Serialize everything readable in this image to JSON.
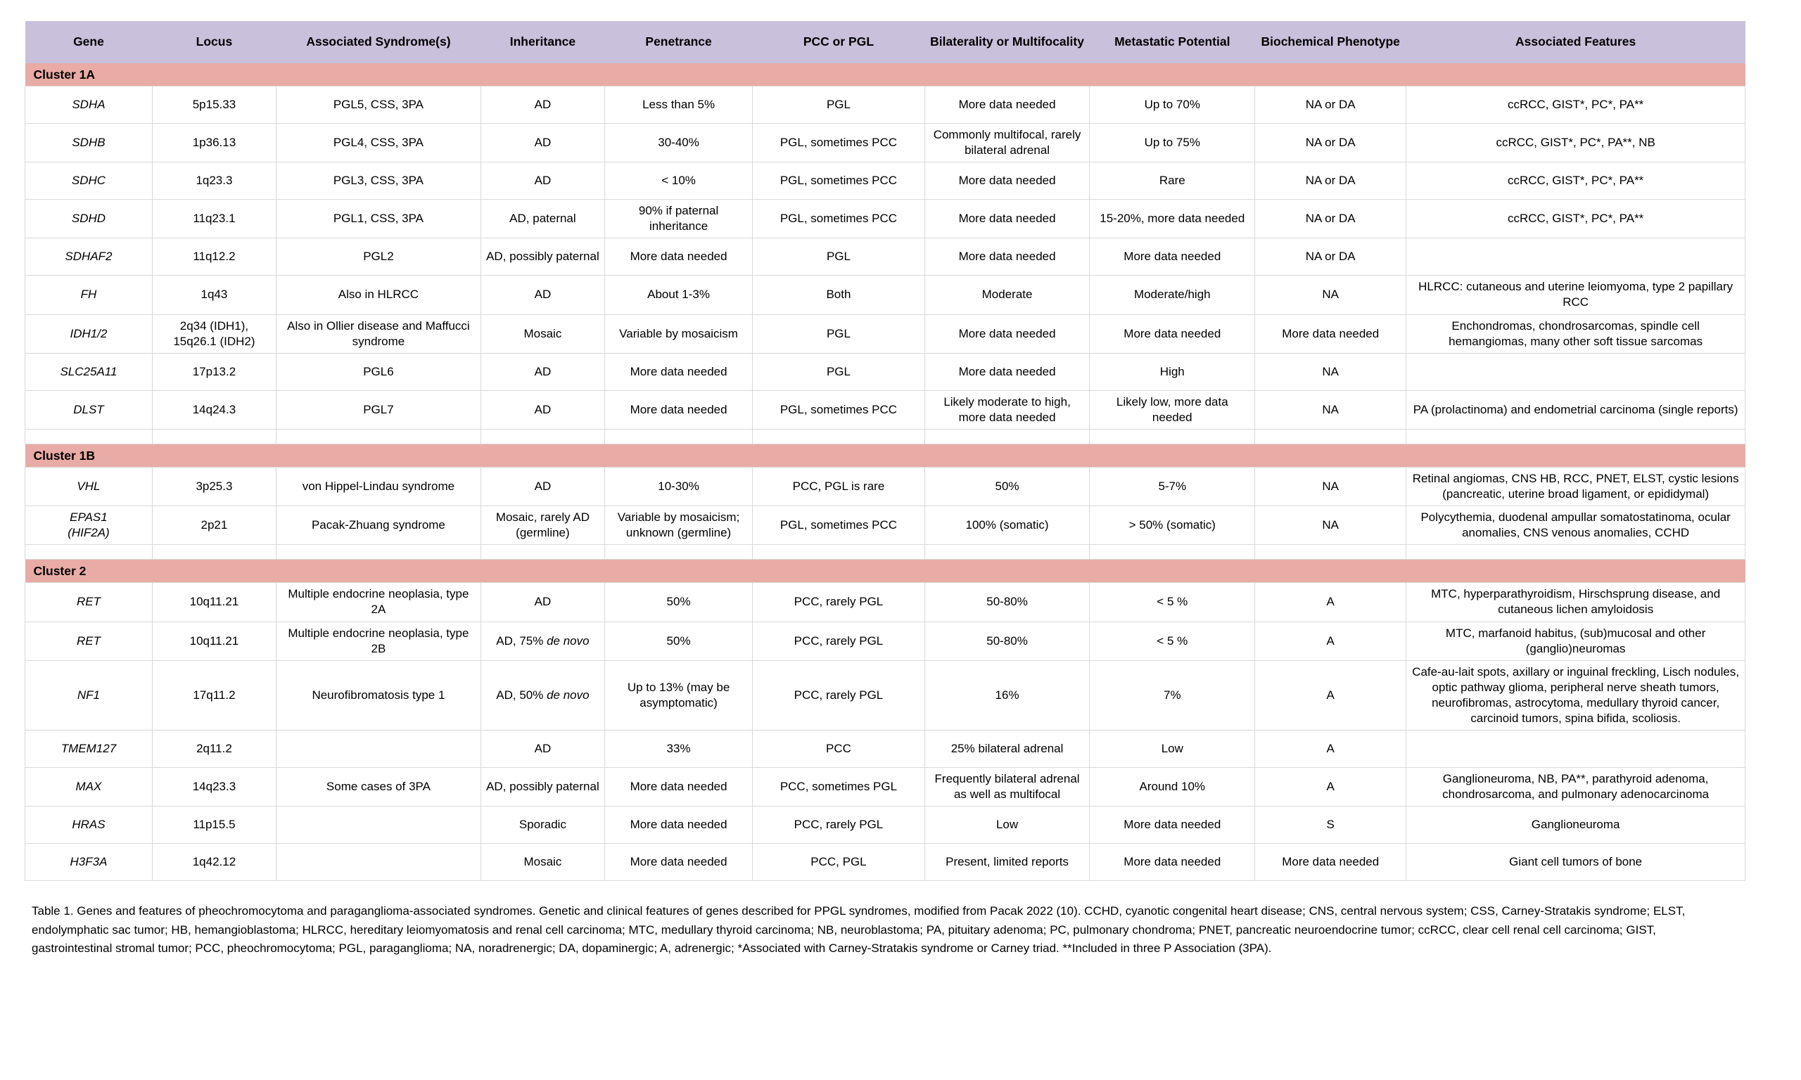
{
  "colors": {
    "header_bg": "#c9c0db",
    "cluster_bg": "#e9aba5",
    "border": "#d9d9d9",
    "text": "#000000",
    "page_bg": "#ffffff"
  },
  "table": {
    "columns": [
      {
        "label": "Gene",
        "width": 7.4
      },
      {
        "label": "Locus",
        "width": 7.2
      },
      {
        "label": "Associated Syndrome(s)",
        "width": 11.9
      },
      {
        "label": "Inheritance",
        "width": 7.2
      },
      {
        "label": "Penetrance",
        "width": 8.6
      },
      {
        "label": "PCC or PGL",
        "width": 10.0
      },
      {
        "label": "Bilaterality or Multifocality",
        "width": 9.6
      },
      {
        "label": "Metastatic Potential",
        "width": 9.6
      },
      {
        "label": "Biochemical Phenotype",
        "width": 8.8
      },
      {
        "label": "Associated Features",
        "width": 19.7
      }
    ],
    "sections": [
      {
        "header": "Cluster 1A",
        "spacer_after": true,
        "rows": [
          [
            "SDHA",
            "5p15.33",
            "PGL5, CSS, 3PA",
            "AD",
            "Less than 5%",
            "PGL",
            "More data needed",
            "Up to 70%",
            "NA or DA",
            "ccRCC, GIST*, PC*, PA**"
          ],
          [
            "SDHB",
            "1p36.13",
            "PGL4, CSS, 3PA",
            "AD",
            "30-40%",
            "PGL, sometimes PCC",
            "Commonly multifocal, rarely bilateral adrenal",
            "Up to 75%",
            "NA or DA",
            "ccRCC, GIST*, PC*, PA**, NB"
          ],
          [
            "SDHC",
            "1q23.3",
            "PGL3, CSS, 3PA",
            "AD",
            "< 10%",
            "PGL, sometimes PCC",
            "More data needed",
            "Rare",
            "NA or DA",
            "ccRCC, GIST*, PC*, PA**"
          ],
          [
            "SDHD",
            "11q23.1",
            "PGL1, CSS, 3PA",
            "AD, paternal",
            "90% if paternal inheritance",
            "PGL, sometimes PCC",
            "More data needed",
            "15-20%, more data needed",
            "NA or DA",
            "ccRCC, GIST*, PC*, PA**"
          ],
          [
            "SDHAF2",
            "11q12.2",
            "PGL2",
            "AD, possibly paternal",
            "More data needed",
            "PGL",
            "More data needed",
            "More data needed",
            "NA or DA",
            ""
          ],
          [
            "FH",
            "1q43",
            "Also in HLRCC",
            "AD",
            "About 1-3%",
            "Both",
            "Moderate",
            "Moderate/high",
            "NA",
            "HLRCC: cutaneous and uterine leiomyoma, type 2 papillary RCC"
          ],
          [
            "IDH1/2",
            "2q34 (IDH1), 15q26.1 (IDH2)",
            "Also in Ollier disease and Maffucci syndrome",
            "Mosaic",
            "Variable by mosaicism",
            "PGL",
            "More data needed",
            "More data needed",
            "More data needed",
            "Enchondromas, chondrosarcomas, spindle cell hemangiomas, many other soft tissue sarcomas"
          ],
          [
            "SLC25A11",
            "17p13.2",
            "PGL6",
            "AD",
            "More data needed",
            "PGL",
            "More data needed",
            "High",
            "NA",
            ""
          ],
          [
            "DLST",
            "14q24.3",
            "PGL7",
            "AD",
            "More data needed",
            "PGL, sometimes PCC",
            "Likely moderate to high, more data needed",
            "Likely low, more data needed",
            "NA",
            "PA (prolactinoma) and endometrial carcinoma (single reports)"
          ]
        ]
      },
      {
        "header": "Cluster 1B",
        "spacer_after": true,
        "rows": [
          [
            "VHL",
            "3p25.3",
            "von Hippel-Lindau syndrome",
            "AD",
            "10-30%",
            "PCC, PGL is rare",
            "50%",
            "5-7%",
            "NA",
            "Retinal angiomas, CNS HB, RCC, PNET, ELST, cystic lesions (pancreatic, uterine broad ligament, or epididymal)"
          ],
          [
            "EPAS1\n(HIF2A)",
            "2p21",
            "Pacak-Zhuang syndrome",
            "Mosaic, rarely AD (germline)",
            "Variable by mosaicism; unknown (germline)",
            "PGL, sometimes PCC",
            "100% (somatic)",
            "> 50% (somatic)",
            "NA",
            "Polycythemia, duodenal ampullar somatostatinoma, ocular anomalies, CNS venous anomalies, CCHD"
          ]
        ]
      },
      {
        "header": "Cluster 2",
        "spacer_after": false,
        "rows": [
          [
            "RET",
            "10q11.21",
            "Multiple endocrine neoplasia, type 2A",
            "AD",
            "50%",
            "PCC, rarely PGL",
            "50-80%",
            "< 5 %",
            "A",
            "MTC, hyperparathyroidism, Hirschsprung disease, and cutaneous lichen amyloidosis"
          ],
          [
            "RET",
            "10q11.21",
            "Multiple endocrine neoplasia, type 2B",
            "AD, 75% de novo",
            "50%",
            "PCC, rarely PGL",
            "50-80%",
            "< 5 %",
            "A",
            "MTC, marfanoid habitus, (sub)mucosal and other (ganglio)neuromas"
          ],
          [
            "NF1",
            "17q11.2",
            "Neurofibromatosis type 1",
            "AD, 50% de novo",
            "Up to 13% (may be asymptomatic)",
            "PCC, rarely PGL",
            "16%",
            "7%",
            "A",
            "Cafe-au-lait spots, axillary or inguinal freckling, Lisch nodules, optic pathway glioma, peripheral nerve sheath tumors, neurofibromas, astrocytoma, medullary thyroid cancer, carcinoid tumors, spina bifida, scoliosis."
          ],
          [
            "TMEM127",
            "2q11.2",
            "",
            "AD",
            "33%",
            "PCC",
            "25% bilateral adrenal",
            "Low",
            "A",
            ""
          ],
          [
            "MAX",
            "14q23.3",
            "Some cases of 3PA",
            "AD, possibly paternal",
            "More data needed",
            "PCC, sometimes PGL",
            "Frequently bilateral adrenal as well as multifocal",
            "Around 10%",
            "A",
            "Ganglioneuroma, NB, PA**, parathyroid adenoma, chondrosarcoma, and pulmonary adenocarcinoma"
          ],
          [
            "HRAS",
            "11p15.5",
            "",
            "Sporadic",
            "More data needed",
            "PCC, rarely PGL",
            "Low",
            "More data needed",
            "S",
            "Ganglioneuroma"
          ],
          [
            "H3F3A",
            "1q42.12",
            "",
            "Mosaic",
            "More data needed",
            "PCC, PGL",
            "Present, limited reports",
            "More data needed",
            "More data needed",
            "Giant cell tumors of bone"
          ]
        ]
      }
    ],
    "caption": "Table 1. Genes and features of pheochromocytoma and paraganglioma-associated syndromes. Genetic and clinical features of genes described for PPGL syndromes, modified from Pacak 2022 (10). CCHD, cyanotic congenital heart disease; CNS, central nervous system; CSS, Carney-Stratakis syndrome; ELST, endolymphatic sac tumor; HB, hemangioblastoma; HLRCC, hereditary leiomyomatosis and renal cell carcinoma; MTC, medullary thyroid carcinoma; NB, neuroblastoma; PA, pituitary adenoma; PC, pulmonary chondroma; PNET, pancreatic neuroendocrine tumor; ccRCC, clear cell renal cell carcinoma; GIST, gastrointestinal stromal tumor; PCC, pheochromocytoma; PGL, paraganglioma; NA, noradrenergic; DA, dopaminergic; A, adrenergic; *Associated with Carney-Stratakis syndrome or Carney triad. **Included in three P Association (3PA)."
  }
}
